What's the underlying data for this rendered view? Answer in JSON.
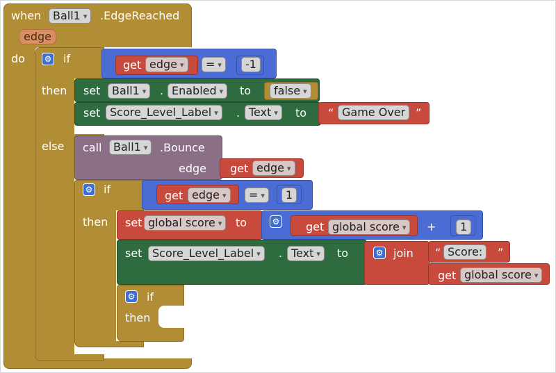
{
  "event": {
    "when": "when",
    "component": "Ball1",
    "event_name": ".EdgeReached",
    "param": "edge",
    "do": "do"
  },
  "if1": {
    "if": "if",
    "get": "get",
    "var": "edge",
    "op": "=",
    "value": "-1",
    "then": "then",
    "else": "else"
  },
  "then1": {
    "set": "set",
    "component": "Ball1",
    "dot": ".",
    "prop": "Enabled",
    "to": "to",
    "value": "false",
    "set2": "set",
    "component2": "Score_Level_Label",
    "dot2": ".",
    "prop2": "Text",
    "to2": "to",
    "quote_open": "“",
    "text": "Game Over",
    "quote_close": "”"
  },
  "else1": {
    "call": "call",
    "component": "Ball1",
    "method": ".Bounce",
    "arg_label": "edge",
    "get": "get",
    "var": "edge"
  },
  "if2": {
    "if": "if",
    "get": "get",
    "var": "edge",
    "op": "=",
    "value": "1",
    "then": "then"
  },
  "then2": {
    "set": "set",
    "var": "global score",
    "to": "to",
    "get": "get",
    "get_var": "global score",
    "plus": "+",
    "num": "1",
    "set2": "set",
    "component": "Score_Level_Label",
    "dot": ".",
    "prop": "Text",
    "to2": "to",
    "join": "join",
    "quote_open": "“",
    "text": "Score:",
    "quote_close": "”",
    "get2": "get",
    "get_var2": "global score"
  },
  "if3": {
    "if": "if",
    "then": "then"
  },
  "icons": {
    "gear": "⚙",
    "dropdown": "▾"
  },
  "colors": {
    "control": "#b18e35",
    "logic": "#4a6cd4",
    "text_var": "#c84a3c",
    "setter": "#2e6b3e",
    "procedure": "#8a6f87"
  }
}
